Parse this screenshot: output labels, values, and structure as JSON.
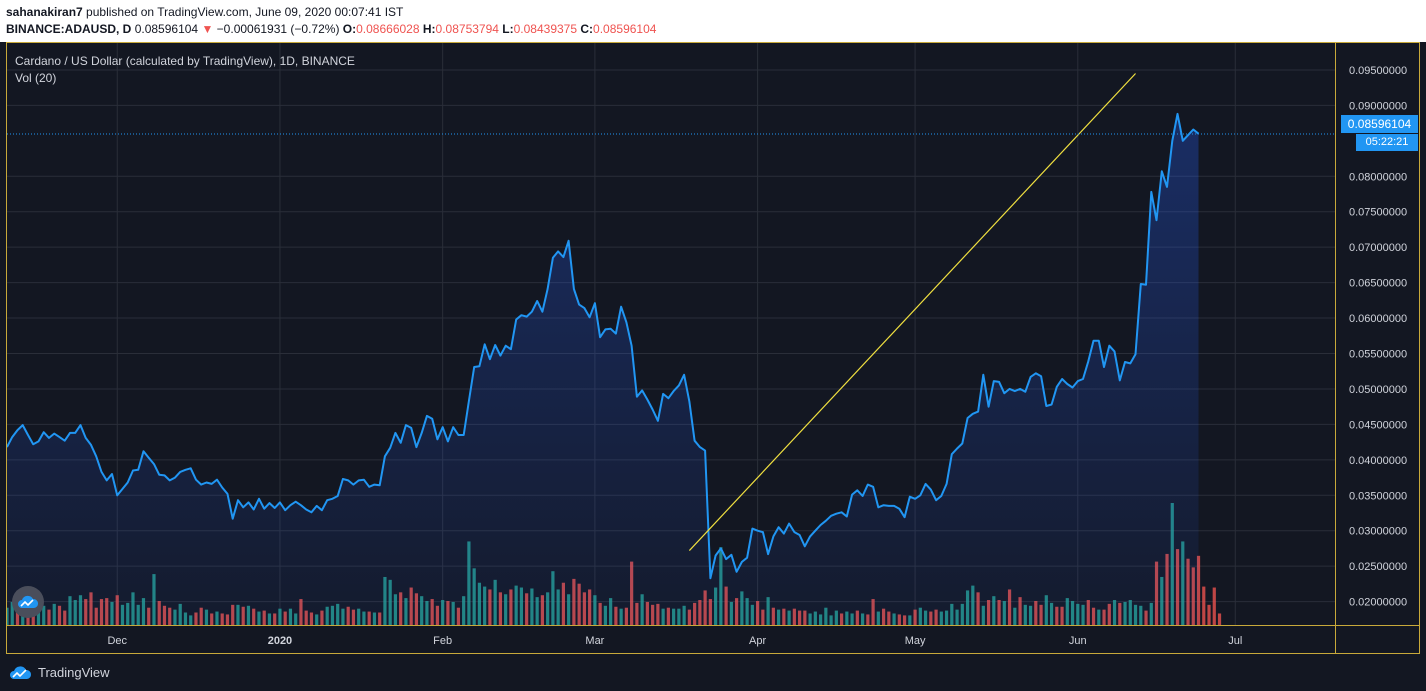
{
  "header": {
    "author": "sahanakiran7",
    "published": " published on TradingView.com, June 09, 2020 00:07:41 IST",
    "symbol": "BINANCE:ADAUSD, D",
    "last": "0.08596104",
    "arrow": "▼",
    "change": "−0.00061931 (−0.72%)",
    "o_label": "O:",
    "o_value": "0.08666028",
    "h_label": "H:",
    "h_value": "0.08753794",
    "l_label": "L:",
    "l_value": "0.08439375",
    "c_label": "C:",
    "c_value": "0.08596104"
  },
  "legend": {
    "title": "Cardano / US Dollar (calculated by TradingView), 1D, BINANCE",
    "volume": "Vol (20)"
  },
  "price_tag": "0.08596104",
  "time_tag": "05:22:21",
  "footer": {
    "brand": "TradingView"
  },
  "colors": {
    "line": "#2196f3",
    "trend": "#f0e040",
    "up_vol": "#26a69a",
    "down_vol": "#ef5350",
    "background": "#131722"
  },
  "chart_data": {
    "type": "line",
    "price_range": [
      0.0167,
      0.0988
    ],
    "y_ticks": [
      "0.02000000",
      "0.02500000",
      "0.03000000",
      "0.03500000",
      "0.04000000",
      "0.04500000",
      "0.05000000",
      "0.05500000",
      "0.06000000",
      "0.06500000",
      "0.07000000",
      "0.07500000",
      "0.08000000",
      "0.09000000",
      "0.09500000"
    ],
    "x_ticks": [
      "Dec",
      "2020",
      "Feb",
      "Mar",
      "Apr",
      "May",
      "Jun",
      "Jul"
    ],
    "x_tick_dates": [
      "2019-12-01",
      "2020-01-01",
      "2020-02-01",
      "2020-03-01",
      "2020-04-01",
      "2020-05-01",
      "2020-06-01",
      "2020-07-01"
    ],
    "start_date": "2019-11-10",
    "end_date": "2020-07-20",
    "last_price": 0.08596104,
    "series": [
      {
        "values": [
          0.0418,
          0.0432,
          0.0442,
          0.0449,
          0.0435,
          0.0422,
          0.0426,
          0.0439,
          0.0431,
          0.0437,
          0.0432,
          0.0427,
          0.0438,
          0.0438,
          0.0449,
          0.0431,
          0.0421,
          0.0405,
          0.0383,
          0.0371,
          0.038,
          0.035,
          0.0359,
          0.0368,
          0.0385,
          0.0386,
          0.0412,
          0.0403,
          0.0394,
          0.0379,
          0.0378,
          0.0371,
          0.0375,
          0.0383,
          0.0386,
          0.0388,
          0.0372,
          0.0365,
          0.0368,
          0.0366,
          0.0372,
          0.0361,
          0.0352,
          0.0317,
          0.0343,
          0.0333,
          0.034,
          0.033,
          0.0345,
          0.0331,
          0.0339,
          0.0332,
          0.034,
          0.0329,
          0.0336,
          0.0341,
          0.0336,
          0.033,
          0.0326,
          0.0335,
          0.0329,
          0.0343,
          0.0345,
          0.0349,
          0.0373,
          0.0371,
          0.0365,
          0.0371,
          0.0372,
          0.0362,
          0.0365,
          0.0364,
          0.0405,
          0.0417,
          0.0438,
          0.0424,
          0.0449,
          0.0445,
          0.0418,
          0.0438,
          0.0462,
          0.0458,
          0.0429,
          0.0446,
          0.0426,
          0.0446,
          0.0435,
          0.0435,
          0.0483,
          0.0531,
          0.0532,
          0.0563,
          0.0542,
          0.0562,
          0.0547,
          0.0561,
          0.0556,
          0.0598,
          0.0604,
          0.0602,
          0.0609,
          0.0624,
          0.0609,
          0.0641,
          0.0685,
          0.0694,
          0.0686,
          0.0709,
          0.0641,
          0.0619,
          0.0614,
          0.0601,
          0.0621,
          0.0573,
          0.0584,
          0.0585,
          0.0578,
          0.0616,
          0.0594,
          0.0561,
          0.0489,
          0.0498,
          0.0485,
          0.0471,
          0.0455,
          0.0493,
          0.0487,
          0.0497,
          0.0505,
          0.052,
          0.0482,
          0.0427,
          0.0418,
          0.0413,
          0.0233,
          0.0265,
          0.0275,
          0.026,
          0.0266,
          0.0242,
          0.0256,
          0.0262,
          0.0303,
          0.03,
          0.0298,
          0.0267,
          0.0292,
          0.0305,
          0.0296,
          0.031,
          0.0298,
          0.0294,
          0.0278,
          0.0292,
          0.03,
          0.0308,
          0.0314,
          0.0321,
          0.0324,
          0.0326,
          0.032,
          0.0351,
          0.0357,
          0.0349,
          0.0365,
          0.0362,
          0.0333,
          0.0336,
          0.0335,
          0.0335,
          0.0331,
          0.0319,
          0.0348,
          0.0345,
          0.035,
          0.0366,
          0.0358,
          0.0343,
          0.0349,
          0.0366,
          0.0408,
          0.0416,
          0.0423,
          0.0459,
          0.0465,
          0.0468,
          0.052,
          0.0475,
          0.0511,
          0.051,
          0.0494,
          0.05,
          0.0497,
          0.05,
          0.0496,
          0.0517,
          0.0522,
          0.0518,
          0.0476,
          0.0478,
          0.0503,
          0.0514,
          0.0507,
          0.0502,
          0.0511,
          0.0514,
          0.0539,
          0.0568,
          0.0568,
          0.0531,
          0.0561,
          0.0553,
          0.0512,
          0.0538,
          0.0536,
          0.0549,
          0.0648,
          0.0647,
          0.0778,
          0.0738,
          0.0807,
          0.0785,
          0.085,
          0.0888,
          0.085,
          0.0858,
          0.0866,
          0.086
        ]
      }
    ],
    "volume": {
      "values": [
        1.8,
        2.4,
        1.4,
        1.9,
        1.8,
        1.7,
        1.5,
        2.0,
        1.6,
        2.2,
        2.0,
        1.5,
        3.0,
        2.6,
        3.1,
        2.7,
        3.4,
        1.8,
        2.7,
        2.8,
        2.4,
        3.1,
        2.1,
        2.3,
        3.4,
        2.1,
        2.8,
        1.8,
        5.3,
        2.5,
        2.0,
        1.8,
        1.6,
        2.2,
        1.3,
        1.0,
        1.3,
        1.8,
        1.6,
        1.2,
        1.4,
        1.2,
        1.1,
        2.1,
        2.1,
        1.9,
        2.0,
        1.7,
        1.4,
        1.5,
        1.2,
        1.2,
        1.7,
        1.4,
        1.7,
        1.2,
        2.7,
        1.5,
        1.3,
        1.1,
        1.5,
        1.9,
        2.0,
        2.2,
        1.7,
        1.9,
        1.6,
        1.7,
        1.4,
        1.4,
        1.3,
        1.3,
        5.0,
        4.7,
        3.2,
        3.4,
        2.8,
        3.9,
        3.3,
        3.0,
        2.5,
        2.7,
        2.0,
        2.6,
        2.5,
        2.4,
        1.8,
        3.0,
        8.7,
        5.9,
        4.4,
        4.0,
        3.7,
        4.7,
        3.4,
        3.2,
        3.7,
        4.1,
        3.9,
        3.3,
        3.8,
        2.9,
        3.1,
        3.4,
        5.6,
        3.7,
        4.4,
        3.2,
        4.8,
        4.3,
        3.4,
        3.7,
        3.1,
        2.3,
        2.0,
        2.8,
        1.9,
        1.7,
        1.8,
        6.6,
        2.3,
        3.2,
        2.4,
        2.1,
        2.2,
        1.7,
        1.8,
        1.7,
        1.7,
        2.0,
        1.6,
        2.3,
        2.6,
        3.6,
        2.7,
        3.9,
        8.1,
        4.0,
        2.4,
        2.8,
        3.5,
        2.8,
        2.1,
        2.5,
        1.6,
        2.9,
        1.8,
        1.6,
        1.7,
        1.5,
        1.7,
        1.5,
        1.5,
        1.2,
        1.4,
        1.1,
        1.8,
        1.0,
        1.5,
        1.2,
        1.4,
        1.2,
        1.5,
        1.2,
        1.1,
        2.7,
        1.4,
        1.7,
        1.4,
        1.2,
        1.1,
        1.0,
        1.0,
        1.6,
        1.8,
        1.5,
        1.4,
        1.6,
        1.4,
        1.5,
        2.2,
        1.6,
        2.2,
        3.6,
        4.1,
        3.4,
        2.0,
        2.6,
        3.0,
        2.6,
        2.5,
        3.7,
        1.8,
        2.9,
        2.1,
        2.0,
        2.5,
        2.1,
        3.1,
        2.3,
        1.9,
        1.9,
        2.8,
        2.5,
        2.2,
        2.1,
        2.6,
        1.8,
        1.6,
        1.6,
        2.2,
        2.6,
        2.3,
        2.4,
        2.6,
        2.1,
        2.0,
        1.5,
        2.3,
        6.6,
        5.0,
        7.4,
        12.7,
        7.9,
        8.7,
        6.9,
        6.0,
        7.2,
        4.0,
        2.1,
        3.9,
        1.2
      ],
      "up": [
        1,
        1,
        0,
        1,
        0,
        0,
        1,
        1,
        0,
        1,
        0,
        0,
        1,
        1,
        1,
        0,
        0,
        0,
        0,
        0,
        1,
        0,
        1,
        1,
        1,
        1,
        1,
        0,
        1,
        0,
        0,
        0,
        1,
        1,
        1,
        1,
        0,
        0,
        1,
        0,
        1,
        0,
        0,
        0,
        1,
        0,
        1,
        0,
        1,
        0,
        1,
        0,
        1,
        0,
        1,
        1,
        0,
        0,
        0,
        1,
        0,
        1,
        1,
        1,
        1,
        0,
        0,
        1,
        1,
        0,
        1,
        0,
        1,
        1,
        1,
        0,
        1,
        0,
        0,
        1,
        1,
        0,
        0,
        1,
        0,
        1,
        0,
        1,
        1,
        1,
        1,
        1,
        0,
        1,
        0,
        1,
        0,
        1,
        1,
        0,
        1,
        1,
        0,
        1,
        1,
        1,
        0,
        1,
        0,
        0,
        0,
        0,
        1,
        0,
        1,
        1,
        0,
        1,
        0,
        0,
        0,
        1,
        0,
        0,
        0,
        1,
        0,
        1,
        1,
        1,
        0,
        0,
        0,
        0,
        0,
        1,
        1,
        0,
        1,
        0,
        1,
        1,
        1,
        0,
        0,
        1,
        0,
        1,
        0,
        1,
        0,
        0,
        0,
        1,
        1,
        1,
        1,
        1,
        1,
        0,
        1,
        1,
        0,
        1,
        0,
        0,
        1,
        0,
        0,
        1,
        0,
        0,
        1,
        0,
        1,
        1,
        0,
        0,
        1,
        1,
        1,
        1,
        1,
        1,
        1,
        0,
        1,
        0,
        1,
        0,
        1,
        0,
        1,
        0,
        1,
        1,
        0,
        0,
        1,
        1,
        0,
        0,
        1,
        1,
        1,
        1,
        0,
        0,
        1,
        0,
        0,
        1,
        0,
        1,
        1,
        1,
        1,
        0,
        1,
        0,
        1,
        0,
        1,
        0,
        1,
        0,
        0,
        0
      ],
      "peak": 12.7
    },
    "trendline": {
      "from": [
        "2020-03-19",
        0.0272
      ],
      "to": [
        "2020-06-12",
        0.0945
      ]
    }
  }
}
